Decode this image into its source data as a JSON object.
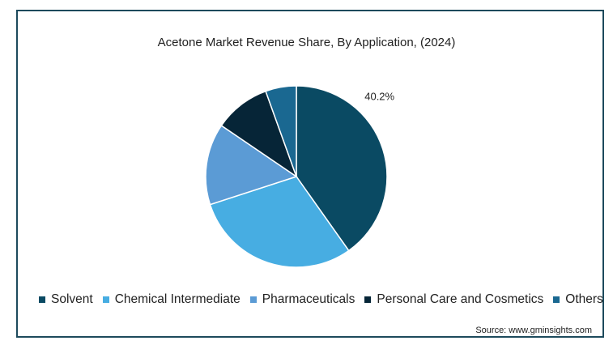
{
  "chart_data": {
    "type": "pie",
    "title": "Acetone Market Revenue Share, By  Application, (2024)",
    "categories": [
      "Solvent",
      "Chemical Intermediate",
      "Pharmaceuticals",
      "Personal Care and Cosmetics",
      "Others"
    ],
    "values": [
      40.2,
      29.8,
      14.5,
      10.0,
      5.5
    ],
    "colors": [
      "#0a4a63",
      "#47ade2",
      "#5b9bd5",
      "#062537",
      "#1a6891"
    ],
    "data_labels": [
      "40.2%",
      "",
      "",
      "",
      ""
    ],
    "legend_position": "bottom",
    "start_angle": "top, clockwise"
  },
  "source": "Source: www.gminsights.com"
}
